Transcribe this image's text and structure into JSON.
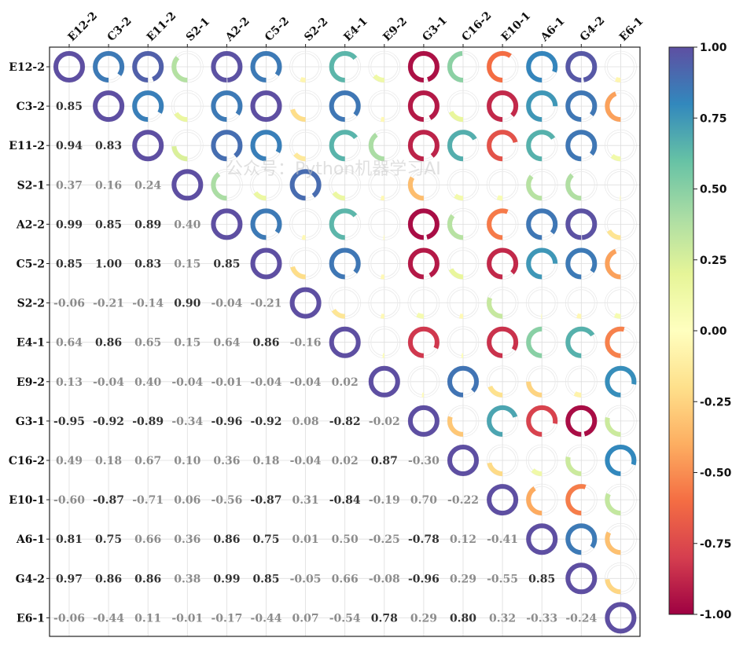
{
  "chart_data": {
    "type": "heatmap",
    "variables": [
      "E12-2",
      "C3-2",
      "E11-2",
      "S2-1",
      "A2-2",
      "C5-2",
      "S2-2",
      "E4-1",
      "E9-2",
      "G3-1",
      "C16-2",
      "E10-1",
      "A6-1",
      "G4-2",
      "E6-1"
    ],
    "matrix": [
      [
        1.0,
        0.85,
        0.94,
        0.37,
        0.99,
        0.85,
        -0.06,
        0.64,
        0.13,
        -0.95,
        0.49,
        -0.6,
        0.81,
        0.97,
        -0.06
      ],
      [
        0.85,
        1.0,
        0.83,
        0.16,
        0.85,
        1.0,
        -0.21,
        0.86,
        -0.04,
        -0.92,
        0.18,
        -0.87,
        0.75,
        0.86,
        -0.44
      ],
      [
        0.94,
        0.83,
        1.0,
        0.24,
        0.89,
        0.83,
        -0.14,
        0.65,
        0.4,
        -0.89,
        0.67,
        -0.71,
        0.66,
        0.86,
        0.11
      ],
      [
        0.37,
        0.16,
        0.24,
        1.0,
        0.4,
        0.15,
        0.9,
        0.15,
        -0.04,
        -0.34,
        0.1,
        0.06,
        0.36,
        0.38,
        -0.01
      ],
      [
        0.99,
        0.85,
        0.89,
        0.4,
        1.0,
        0.85,
        -0.04,
        0.64,
        -0.01,
        -0.96,
        0.36,
        -0.56,
        0.86,
        0.99,
        -0.17
      ],
      [
        0.85,
        1.0,
        0.83,
        0.15,
        0.85,
        1.0,
        -0.21,
        0.86,
        -0.04,
        -0.92,
        0.18,
        -0.87,
        0.75,
        0.85,
        -0.44
      ],
      [
        -0.06,
        -0.21,
        -0.14,
        0.9,
        -0.04,
        -0.21,
        1.0,
        -0.16,
        -0.04,
        0.08,
        -0.04,
        0.31,
        0.01,
        -0.05,
        0.07
      ],
      [
        0.64,
        0.86,
        0.65,
        0.15,
        0.64,
        0.86,
        -0.16,
        1.0,
        0.02,
        -0.82,
        0.02,
        -0.84,
        0.5,
        0.66,
        -0.54
      ],
      [
        0.13,
        -0.04,
        0.4,
        -0.04,
        -0.01,
        -0.04,
        -0.04,
        0.02,
        1.0,
        -0.02,
        0.87,
        -0.19,
        -0.25,
        -0.08,
        0.78
      ],
      [
        -0.95,
        -0.92,
        -0.89,
        -0.34,
        -0.96,
        -0.92,
        0.08,
        -0.82,
        -0.02,
        1.0,
        -0.3,
        0.7,
        -0.78,
        -0.96,
        0.29
      ],
      [
        0.49,
        0.18,
        0.67,
        0.1,
        0.36,
        0.18,
        -0.04,
        0.02,
        0.87,
        -0.3,
        1.0,
        -0.22,
        0.12,
        0.29,
        0.8
      ],
      [
        -0.6,
        -0.87,
        -0.71,
        0.06,
        -0.56,
        -0.87,
        0.31,
        -0.84,
        -0.19,
        0.7,
        -0.22,
        1.0,
        -0.41,
        -0.55,
        0.32
      ],
      [
        0.81,
        0.75,
        0.66,
        0.36,
        0.86,
        0.75,
        0.01,
        0.5,
        -0.25,
        -0.78,
        0.12,
        -0.41,
        1.0,
        0.85,
        -0.33
      ],
      [
        0.97,
        0.86,
        0.86,
        0.38,
        0.99,
        0.85,
        -0.05,
        0.66,
        -0.08,
        -0.96,
        0.29,
        -0.55,
        0.85,
        1.0,
        -0.24
      ],
      [
        -0.06,
        -0.44,
        0.11,
        -0.01,
        -0.17,
        -0.44,
        0.07,
        -0.54,
        0.78,
        0.29,
        0.8,
        0.32,
        -0.33,
        -0.24,
        1.0
      ]
    ],
    "upper_triangle_style": "donut ring, arc proportional to |r|, colored by r",
    "lower_triangle_style": "numeric text, bold dark when |r| >= 0.75, gray otherwise",
    "strong_threshold": 0.75,
    "colormap": "Spectral",
    "colorbar": {
      "range": [
        -1.0,
        1.0
      ],
      "ticks": [
        1.0,
        0.75,
        0.5,
        0.25,
        0.0,
        -0.25,
        -0.5,
        -0.75,
        -1.0
      ],
      "tick_labels": [
        "1.00",
        "0.75",
        "0.50",
        "0.25",
        "0.00",
        "-0.25",
        "-0.50",
        "-0.75",
        "-1.00"
      ],
      "position": "right"
    },
    "grid": true
  },
  "watermark": "公众号：Python机器学习AI",
  "colors": {
    "strong_text": "#333333",
    "weak_text": "#8c8c8c",
    "grid": "#dddddd",
    "ring_background": "#ececec"
  }
}
